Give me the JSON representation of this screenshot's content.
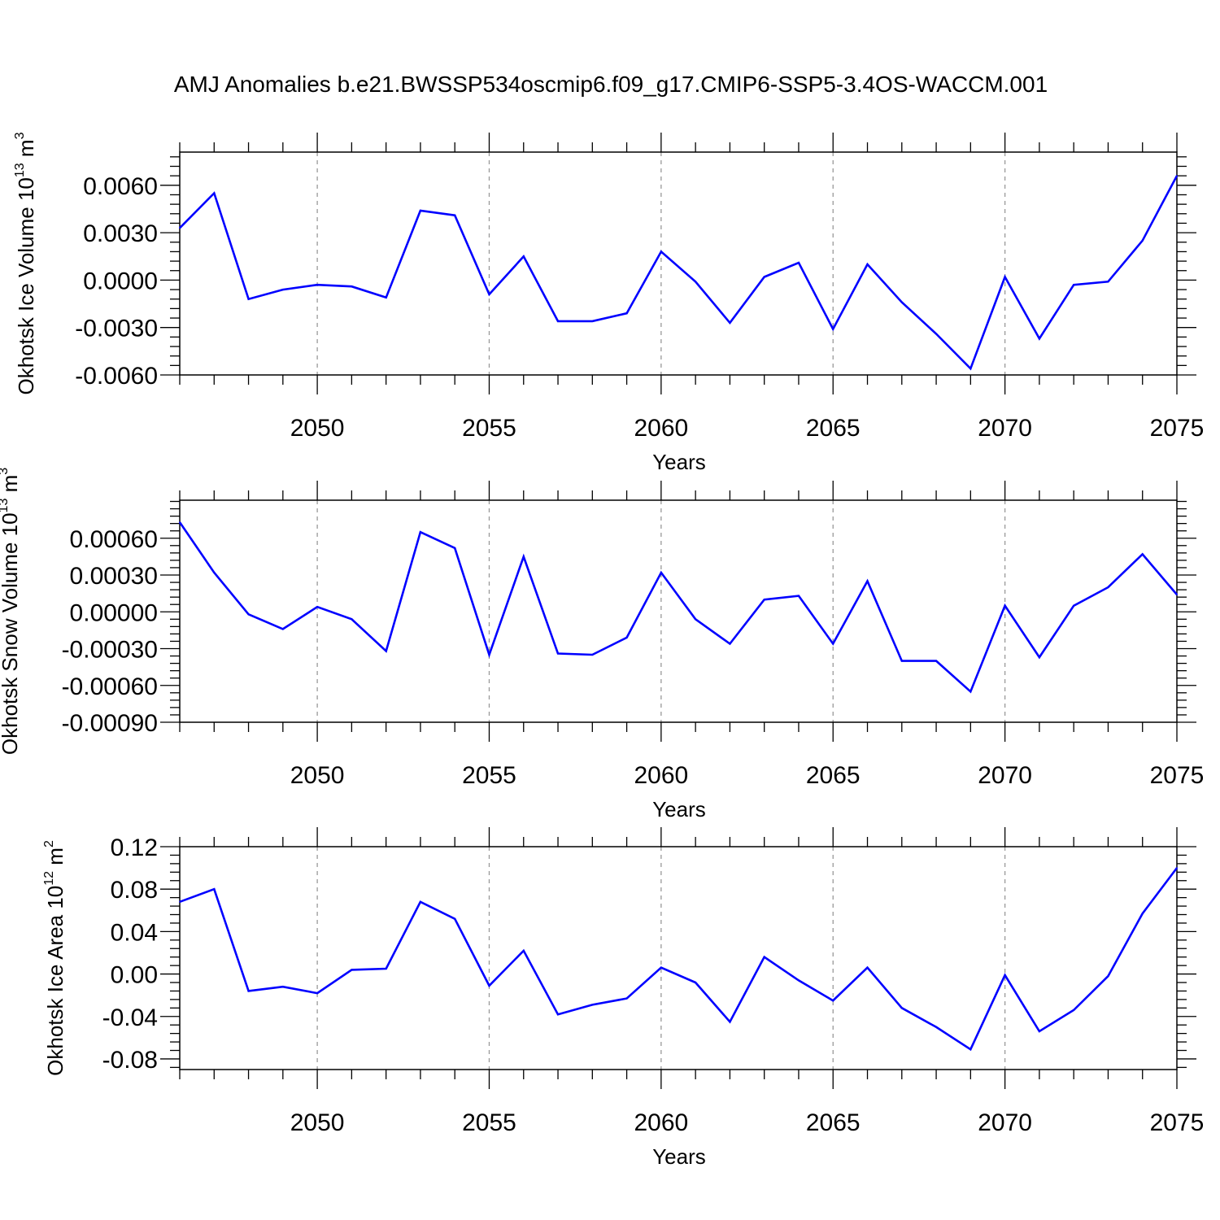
{
  "page": {
    "title": "AMJ Anomalies b.e21.BWSSP534oscmip6.f09_g17.CMIP6-SSP5-3.4OS-WACCM.001"
  },
  "colors": {
    "series": "#0000ff",
    "axes": "#000000",
    "grid": "#999999"
  },
  "chart_data": [
    {
      "type": "line",
      "title": "AMJ Anomalies b.e21.BWSSP534oscmip6.f09_g17.CMIP6-SSP5-3.4OS-WACCM.001",
      "xlabel": "Years",
      "ylabel": {
        "text": "Okhotsk Ice Volume 10",
        "exp": "13",
        "unit": " m",
        "unit_exp": "3"
      },
      "xlim": [
        2046,
        2075
      ],
      "ylim": [
        -0.006,
        0.0081
      ],
      "xticks": [
        2050,
        2055,
        2060,
        2065,
        2070,
        2075
      ],
      "xtick_labels": [
        "2050",
        "2055",
        "2060",
        "2065",
        "2070",
        "2075"
      ],
      "yticks": [
        -0.006,
        -0.003,
        0.0,
        0.003,
        0.006
      ],
      "ytick_labels": [
        "-0.0060",
        "-0.0030",
        "0.0000",
        "0.0030",
        "0.0060"
      ],
      "grid": "vertical dashed at major x ticks",
      "x": [
        2046,
        2047,
        2048,
        2049,
        2050,
        2051,
        2052,
        2053,
        2054,
        2055,
        2056,
        2057,
        2058,
        2059,
        2060,
        2061,
        2062,
        2063,
        2064,
        2065,
        2066,
        2067,
        2068,
        2069,
        2070,
        2071,
        2072,
        2073,
        2074,
        2075
      ],
      "series": [
        {
          "name": "Okhotsk Ice Volume",
          "values": [
            0.0033,
            0.0055,
            -0.0012,
            -0.0006,
            -0.0003,
            -0.0004,
            -0.0011,
            0.0044,
            0.0041,
            -0.0009,
            0.0015,
            -0.0026,
            -0.0026,
            -0.0021,
            0.0018,
            -0.0001,
            -0.0027,
            0.0002,
            0.0011,
            -0.0031,
            0.001,
            -0.0014,
            -0.0034,
            -0.0056,
            0.0002,
            -0.0037,
            -0.0003,
            -0.0001,
            0.0025,
            0.0066
          ]
        }
      ]
    },
    {
      "type": "line",
      "xlabel": "Years",
      "ylabel": {
        "text": "Okhotsk Snow Volume 10",
        "exp": "13",
        "unit": " m",
        "unit_exp": "3"
      },
      "xlim": [
        2046,
        2075
      ],
      "ylim": [
        -0.0009,
        0.00091
      ],
      "xticks": [
        2050,
        2055,
        2060,
        2065,
        2070,
        2075
      ],
      "xtick_labels": [
        "2050",
        "2055",
        "2060",
        "2065",
        "2070",
        "2075"
      ],
      "yticks": [
        -0.0009,
        -0.0006,
        -0.0003,
        0.0,
        0.0003,
        0.0006
      ],
      "ytick_labels": [
        "-0.00090",
        "-0.00060",
        "-0.00030",
        "0.00000",
        "0.00030",
        "0.00060"
      ],
      "grid": "vertical dashed at major x ticks",
      "x": [
        2046,
        2047,
        2048,
        2049,
        2050,
        2051,
        2052,
        2053,
        2054,
        2055,
        2056,
        2057,
        2058,
        2059,
        2060,
        2061,
        2062,
        2063,
        2064,
        2065,
        2066,
        2067,
        2068,
        2069,
        2070,
        2071,
        2072,
        2073,
        2074,
        2075
      ],
      "series": [
        {
          "name": "Okhotsk Snow Volume",
          "values": [
            0.00073,
            0.00032,
            -2e-05,
            -0.00014,
            4e-05,
            -6e-05,
            -0.00032,
            0.00065,
            0.00052,
            -0.00035,
            0.00045,
            -0.00034,
            -0.00035,
            -0.00021,
            0.00032,
            -6e-05,
            -0.00026,
            0.0001,
            0.00013,
            -0.00026,
            0.00025,
            -0.0004,
            -0.0004,
            -0.00065,
            5e-05,
            -0.00037,
            5e-05,
            0.0002,
            0.00047,
            0.00014
          ]
        }
      ]
    },
    {
      "type": "line",
      "xlabel": "Years",
      "ylabel": {
        "text": "Okhotsk Ice Area 10",
        "exp": "12",
        "unit": " m",
        "unit_exp": "2"
      },
      "xlim": [
        2046,
        2075
      ],
      "ylim": [
        -0.09,
        0.12
      ],
      "xticks": [
        2050,
        2055,
        2060,
        2065,
        2070,
        2075
      ],
      "xtick_labels": [
        "2050",
        "2055",
        "2060",
        "2065",
        "2070",
        "2075"
      ],
      "yticks": [
        -0.08,
        -0.04,
        0.0,
        0.04,
        0.08,
        0.12
      ],
      "ytick_labels": [
        "-0.08",
        "-0.04",
        "0.00",
        "0.04",
        "0.08",
        "0.12"
      ],
      "grid": "vertical dashed at major x ticks",
      "x": [
        2046,
        2047,
        2048,
        2049,
        2050,
        2051,
        2052,
        2053,
        2054,
        2055,
        2056,
        2057,
        2058,
        2059,
        2060,
        2061,
        2062,
        2063,
        2064,
        2065,
        2066,
        2067,
        2068,
        2069,
        2070,
        2071,
        2072,
        2073,
        2074,
        2075
      ],
      "series": [
        {
          "name": "Okhotsk Ice Area",
          "values": [
            0.068,
            0.08,
            -0.016,
            -0.012,
            -0.018,
            0.004,
            0.005,
            0.068,
            0.052,
            -0.011,
            0.022,
            -0.038,
            -0.029,
            -0.023,
            0.006,
            -0.008,
            -0.045,
            0.016,
            -0.006,
            -0.025,
            0.006,
            -0.032,
            -0.05,
            -0.071,
            -0.001,
            -0.054,
            -0.034,
            -0.002,
            0.057,
            0.1
          ]
        }
      ]
    }
  ]
}
